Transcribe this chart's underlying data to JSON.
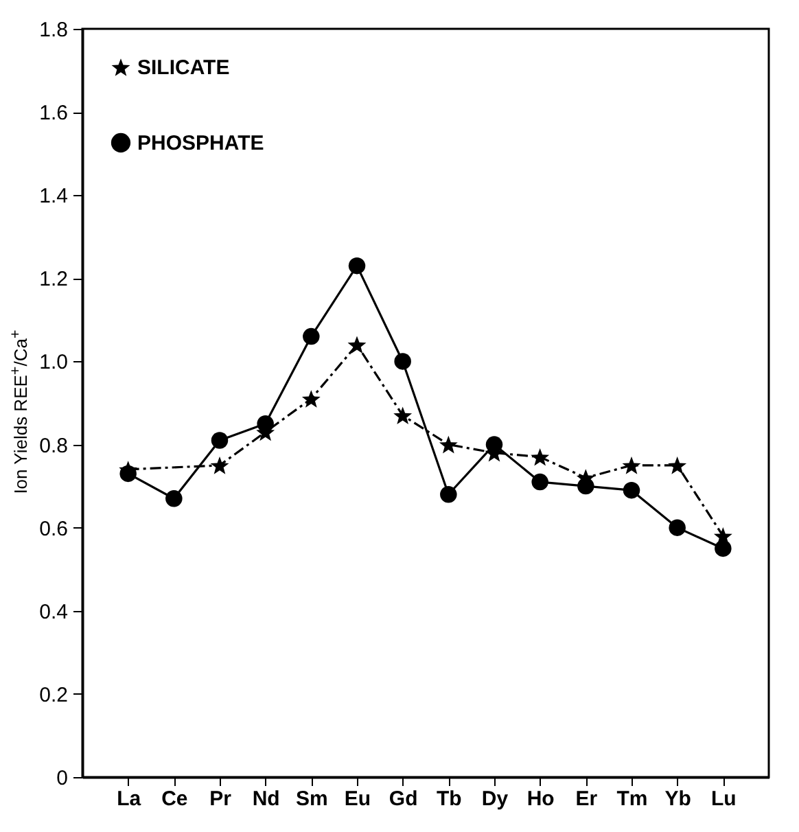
{
  "chart_data": {
    "type": "line",
    "ylabel": "Ion Yields REE$^{+}$/Ca$^{+}$",
    "categories": [
      "La",
      "Ce",
      "Pr",
      "Nd",
      "Sm",
      "Eu",
      "Gd",
      "Tb",
      "Dy",
      "Ho",
      "Er",
      "Tm",
      "Yb",
      "Lu"
    ],
    "series": [
      {
        "name": "SILICATE",
        "color": "#000000",
        "marker": "star",
        "line_style": "dashed",
        "values": [
          0.74,
          null,
          0.75,
          0.83,
          0.91,
          1.04,
          0.87,
          0.8,
          0.78,
          0.77,
          0.72,
          0.75,
          0.75,
          0.58
        ]
      },
      {
        "name": "PHOSPHATE",
        "color": "#000000",
        "marker": "circle",
        "line_style": "solid",
        "values": [
          0.73,
          0.67,
          0.81,
          0.85,
          1.06,
          1.23,
          1.0,
          0.68,
          0.8,
          0.71,
          0.7,
          0.69,
          0.6,
          0.55
        ]
      }
    ],
    "ylim": [
      0,
      1.8
    ],
    "yticks": [
      0,
      0.2,
      0.4,
      0.6,
      0.8,
      {
        "value": 1,
        "label": "1.0"
      },
      1.2,
      1.4,
      1.6,
      1.8
    ],
    "grid": false,
    "legend": "top left"
  }
}
